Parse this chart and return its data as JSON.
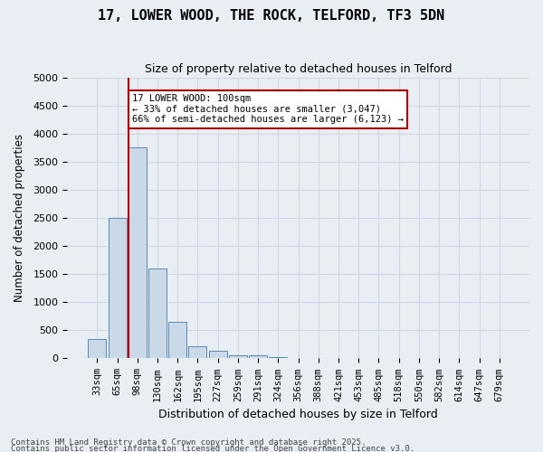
{
  "title1": "17, LOWER WOOD, THE ROCK, TELFORD, TF3 5DN",
  "title2": "Size of property relative to detached houses in Telford",
  "xlabel": "Distribution of detached houses by size in Telford",
  "ylabel": "Number of detached properties",
  "categories": [
    "33sqm",
    "65sqm",
    "98sqm",
    "130sqm",
    "162sqm",
    "195sqm",
    "227sqm",
    "259sqm",
    "291sqm",
    "324sqm",
    "356sqm",
    "388sqm",
    "421sqm",
    "453sqm",
    "485sqm",
    "518sqm",
    "550sqm",
    "582sqm",
    "614sqm",
    "647sqm",
    "679sqm"
  ],
  "values": [
    350,
    2500,
    3750,
    1600,
    650,
    220,
    130,
    60,
    50,
    20,
    5,
    2,
    1,
    0,
    0,
    0,
    0,
    0,
    0,
    0,
    0
  ],
  "bar_color": "#c9d9e8",
  "bar_edge_color": "#5b8ab5",
  "vline_x": 2,
  "vline_color": "#cc0000",
  "annotation_text": "17 LOWER WOOD: 100sqm\n← 33% of detached houses are smaller (3,047)\n66% of semi-detached houses are larger (6,123) →",
  "annotation_box_color": "#ffffff",
  "annotation_box_edge": "#cc0000",
  "ylim": [
    0,
    5000
  ],
  "yticks": [
    0,
    500,
    1000,
    1500,
    2000,
    2500,
    3000,
    3500,
    4000,
    4500,
    5000
  ],
  "grid_color": "#d0d8e4",
  "bg_color": "#e8eef4",
  "footer1": "Contains HM Land Registry data © Crown copyright and database right 2025.",
  "footer2": "Contains public sector information licensed under the Open Government Licence v3.0."
}
